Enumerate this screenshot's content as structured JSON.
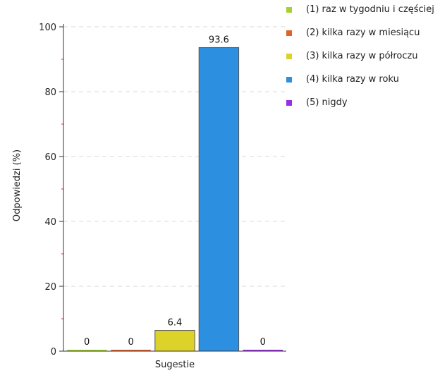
{
  "chart_data": {
    "type": "bar",
    "categories": [
      "Sugestie"
    ],
    "xlabel": "Sugestie",
    "ylabel": "Odpowiedzi (%)",
    "ylim": [
      0,
      100
    ],
    "yticks": [
      0,
      20,
      40,
      60,
      80,
      100
    ],
    "grid": true,
    "legend_position": "right",
    "series": [
      {
        "name": "(1) raz w tygodniu i częściej",
        "values": [
          0
        ],
        "color": "#a6d22e"
      },
      {
        "name": "(2) kilka razy w miesiącu",
        "values": [
          0
        ],
        "color": "#e0622a"
      },
      {
        "name": "(3) kilka razy w półroczu",
        "values": [
          6.4
        ],
        "color": "#ddd22a"
      },
      {
        "name": "(4) kilka razy w roku",
        "values": [
          93.6
        ],
        "color": "#2d8fe0"
      },
      {
        "name": "(5) nigdy",
        "values": [
          0
        ],
        "color": "#9b2fe0"
      }
    ],
    "data_labels": [
      "0",
      "0",
      "6.4",
      "93.6",
      "0"
    ]
  }
}
